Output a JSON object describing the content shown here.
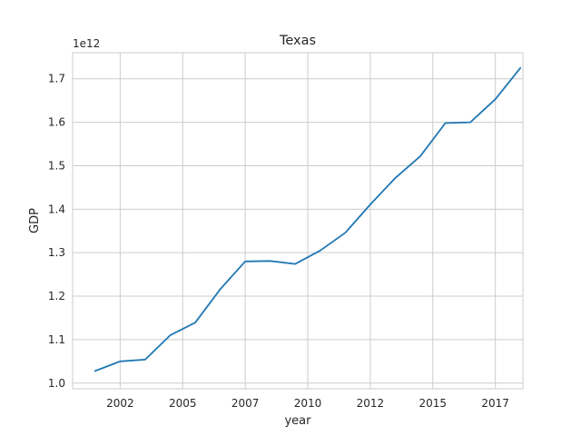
{
  "chart_data": {
    "type": "line",
    "title": "Texas",
    "xlabel": "year",
    "ylabel": "GDP",
    "y_offset_text": "1e12",
    "x_tick_labels": [
      "2002",
      "2005",
      "2007",
      "2010",
      "2012",
      "2015",
      "2017"
    ],
    "x_ticks": [
      2002,
      2004.5,
      2007,
      2009.5,
      2012,
      2014.5,
      2017
    ],
    "y_ticks": [
      1.0,
      1.1,
      1.2,
      1.3,
      1.4,
      1.5,
      1.6,
      1.7
    ],
    "y_tick_labels": [
      "1.0",
      "1.1",
      "1.2",
      "1.3",
      "1.4",
      "1.5",
      "1.6",
      "1.7"
    ],
    "xlim": [
      2000.1,
      2018.1
    ],
    "ylim": [
      0.987,
      1.76
    ],
    "grid": true,
    "color": "#1f77b4",
    "series": [
      {
        "x": [
          2001,
          2002,
          2003,
          2004,
          2005,
          2006,
          2007,
          2008,
          2009,
          2010,
          2011,
          2012,
          2013,
          2014,
          2015,
          2016,
          2017,
          2018
        ],
        "y": [
          1.028,
          1.05,
          1.054,
          1.11,
          1.139,
          1.216,
          1.28,
          1.281,
          1.274,
          1.305,
          1.346,
          1.411,
          1.472,
          1.522,
          1.598,
          1.6,
          1.653,
          1.725
        ]
      }
    ]
  }
}
